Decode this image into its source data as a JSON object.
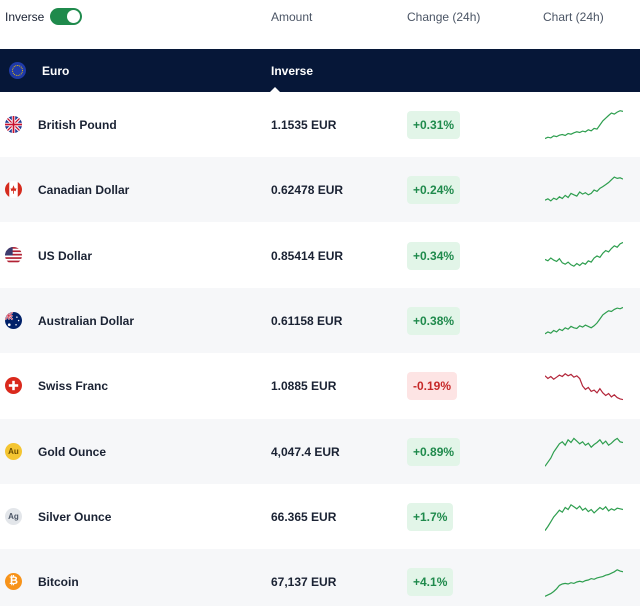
{
  "header": {
    "inverse_label": "Inverse",
    "toggle_on": true,
    "columns": {
      "amount": "Amount",
      "change": "Change (24h)",
      "chart": "Chart (24h)"
    }
  },
  "base": {
    "name": "Euro",
    "tab": "Inverse"
  },
  "rows": [
    {
      "name": "British Pound",
      "amount": "1.1535 EUR",
      "change": "+0.31%",
      "trend": "up",
      "icon": "uk-flag-icon",
      "spark": [
        0.1,
        0.14,
        0.12,
        0.18,
        0.16,
        0.2,
        0.22,
        0.19,
        0.25,
        0.23,
        0.27,
        0.3,
        0.28,
        0.32,
        0.3,
        0.36,
        0.33,
        0.4,
        0.38,
        0.5,
        0.62,
        0.7,
        0.78,
        0.85,
        0.82,
        0.88,
        0.92,
        0.9
      ]
    },
    {
      "name": "Canadian Dollar",
      "amount": "0.62478 EUR",
      "change": "+0.24%",
      "trend": "up",
      "icon": "canada-flag-icon",
      "spark": [
        0.2,
        0.24,
        0.18,
        0.26,
        0.22,
        0.3,
        0.25,
        0.34,
        0.28,
        0.4,
        0.36,
        0.32,
        0.44,
        0.38,
        0.42,
        0.36,
        0.4,
        0.5,
        0.46,
        0.55,
        0.6,
        0.66,
        0.72,
        0.8,
        0.88,
        0.84,
        0.86,
        0.82
      ]
    },
    {
      "name": "US Dollar",
      "amount": "0.85414 EUR",
      "change": "+0.34%",
      "trend": "up",
      "icon": "us-flag-icon",
      "spark": [
        0.4,
        0.36,
        0.44,
        0.38,
        0.34,
        0.42,
        0.3,
        0.26,
        0.32,
        0.24,
        0.2,
        0.28,
        0.22,
        0.3,
        0.26,
        0.36,
        0.32,
        0.44,
        0.5,
        0.46,
        0.58,
        0.66,
        0.62,
        0.72,
        0.8,
        0.76,
        0.86,
        0.9
      ]
    },
    {
      "name": "Australian Dollar",
      "amount": "0.61158 EUR",
      "change": "+0.38%",
      "trend": "up",
      "icon": "australia-flag-icon",
      "spark": [
        0.12,
        0.18,
        0.14,
        0.22,
        0.18,
        0.26,
        0.22,
        0.3,
        0.26,
        0.34,
        0.3,
        0.28,
        0.36,
        0.32,
        0.38,
        0.34,
        0.3,
        0.36,
        0.44,
        0.56,
        0.68,
        0.74,
        0.8,
        0.78,
        0.84,
        0.88,
        0.86,
        0.9
      ]
    },
    {
      "name": "Swiss Franc",
      "amount": "1.0885 EUR",
      "change": "-0.19%",
      "trend": "down",
      "icon": "swiss-flag-icon",
      "spark": [
        0.8,
        0.72,
        0.78,
        0.7,
        0.76,
        0.82,
        0.78,
        0.86,
        0.8,
        0.84,
        0.76,
        0.8,
        0.72,
        0.5,
        0.4,
        0.46,
        0.34,
        0.38,
        0.3,
        0.42,
        0.3,
        0.22,
        0.28,
        0.18,
        0.24,
        0.16,
        0.12,
        0.1
      ]
    },
    {
      "name": "Gold Ounce",
      "amount": "4,047.4 EUR",
      "change": "+0.89%",
      "trend": "up",
      "icon": "gold-ounce-icon",
      "icon_text": "Au",
      "spark": [
        0.08,
        0.2,
        0.32,
        0.5,
        0.62,
        0.74,
        0.8,
        0.7,
        0.86,
        0.78,
        0.9,
        0.82,
        0.74,
        0.8,
        0.7,
        0.76,
        0.64,
        0.72,
        0.78,
        0.86,
        0.74,
        0.82,
        0.7,
        0.76,
        0.84,
        0.9,
        0.8,
        0.78
      ]
    },
    {
      "name": "Silver Ounce",
      "amount": "66.365 EUR",
      "change": "+1.7%",
      "trend": "up",
      "icon": "silver-ounce-icon",
      "icon_text": "Ag",
      "spark": [
        0.1,
        0.22,
        0.36,
        0.5,
        0.6,
        0.7,
        0.64,
        0.78,
        0.72,
        0.86,
        0.8,
        0.74,
        0.82,
        0.7,
        0.76,
        0.66,
        0.72,
        0.62,
        0.7,
        0.78,
        0.72,
        0.8,
        0.68,
        0.74,
        0.7,
        0.76,
        0.74,
        0.72
      ]
    },
    {
      "name": "Bitcoin",
      "amount": "67,137 EUR",
      "change": "+4.1%",
      "trend": "up",
      "icon": "bitcoin-icon",
      "icon_text": "₿",
      "spark": [
        0.08,
        0.12,
        0.16,
        0.22,
        0.3,
        0.4,
        0.44,
        0.46,
        0.44,
        0.48,
        0.46,
        0.5,
        0.52,
        0.5,
        0.54,
        0.56,
        0.6,
        0.58,
        0.62,
        0.64,
        0.66,
        0.7,
        0.72,
        0.76,
        0.8,
        0.86,
        0.82,
        0.8
      ]
    }
  ],
  "colors": {
    "up": "#2e9e4f",
    "down": "#b3263a",
    "header_bg": "#061738"
  }
}
